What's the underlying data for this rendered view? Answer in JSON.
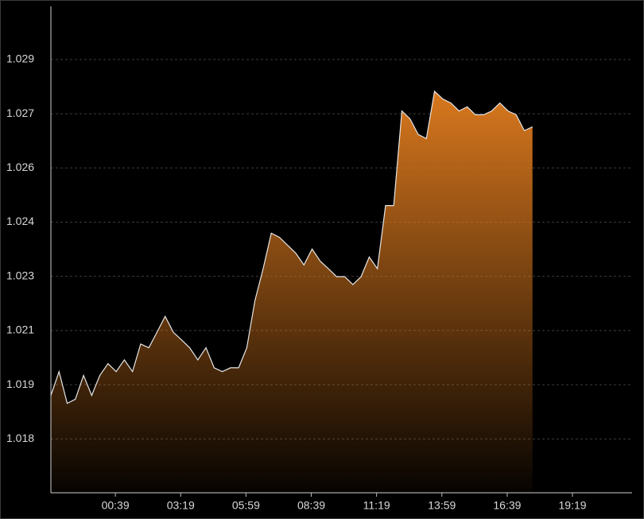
{
  "chart_data": {
    "type": "area",
    "x": [
      -119,
      -99,
      -79,
      -59,
      -39,
      -19,
      1,
      21,
      41,
      61,
      81,
      101,
      121,
      141,
      161,
      181,
      201,
      221,
      241,
      261,
      281,
      301,
      321,
      341,
      361,
      381,
      401,
      421,
      441,
      461,
      481,
      501,
      521,
      541,
      561,
      581,
      601,
      621,
      641,
      661,
      681,
      701,
      721,
      741,
      761,
      781,
      801,
      821,
      841,
      861,
      881,
      901,
      921,
      941,
      961,
      981,
      1001,
      1021,
      1041,
      1061
    ],
    "values": [
      1.01906,
      1.01975,
      1.01883,
      1.01895,
      1.01964,
      1.01906,
      1.01964,
      1.01998,
      1.01975,
      1.02009,
      1.01975,
      1.02055,
      1.02044,
      1.02089,
      1.02135,
      1.02089,
      1.02067,
      1.02044,
      1.02009,
      1.02044,
      1.01986,
      1.01975,
      1.01986,
      1.01986,
      1.02044,
      1.02181,
      1.02273,
      1.02376,
      1.02364,
      1.02341,
      1.02318,
      1.02284,
      1.0233,
      1.02295,
      1.02273,
      1.0225,
      1.0225,
      1.02227,
      1.0225,
      1.02307,
      1.02273,
      1.02456,
      1.02456,
      1.0273,
      1.02707,
      1.02662,
      1.0265,
      1.02787,
      1.02765,
      1.02753,
      1.0273,
      1.02742,
      1.02719,
      1.02719,
      1.0273,
      1.02753,
      1.0273,
      1.02719,
      1.02673,
      1.02684
    ],
    "color": "#d9781e",
    "line_color": "#e6e6e6",
    "xlim": [
      -119,
      1305
    ],
    "ylim": [
      1.01624,
      1.03033
    ],
    "xticks": [
      {
        "value": 39,
        "label": "00:39"
      },
      {
        "value": 199,
        "label": "03:19"
      },
      {
        "value": 359,
        "label": "05:59"
      },
      {
        "value": 519,
        "label": "08:39"
      },
      {
        "value": 679,
        "label": "11:19"
      },
      {
        "value": 839,
        "label": "13:59"
      },
      {
        "value": 999,
        "label": "16:39"
      },
      {
        "value": 1159,
        "label": "19:19"
      }
    ],
    "yticks": [
      {
        "value": 1.0178,
        "label": "1.018"
      },
      {
        "value": 1.01937,
        "label": "1.019"
      },
      {
        "value": 1.02094,
        "label": "1.021"
      },
      {
        "value": 1.02251,
        "label": "1.023"
      },
      {
        "value": 1.02408,
        "label": "1.024"
      },
      {
        "value": 1.02565,
        "label": "1.026"
      },
      {
        "value": 1.02722,
        "label": "1.027"
      },
      {
        "value": 1.02879,
        "label": "1.029"
      }
    ],
    "grid": true
  }
}
